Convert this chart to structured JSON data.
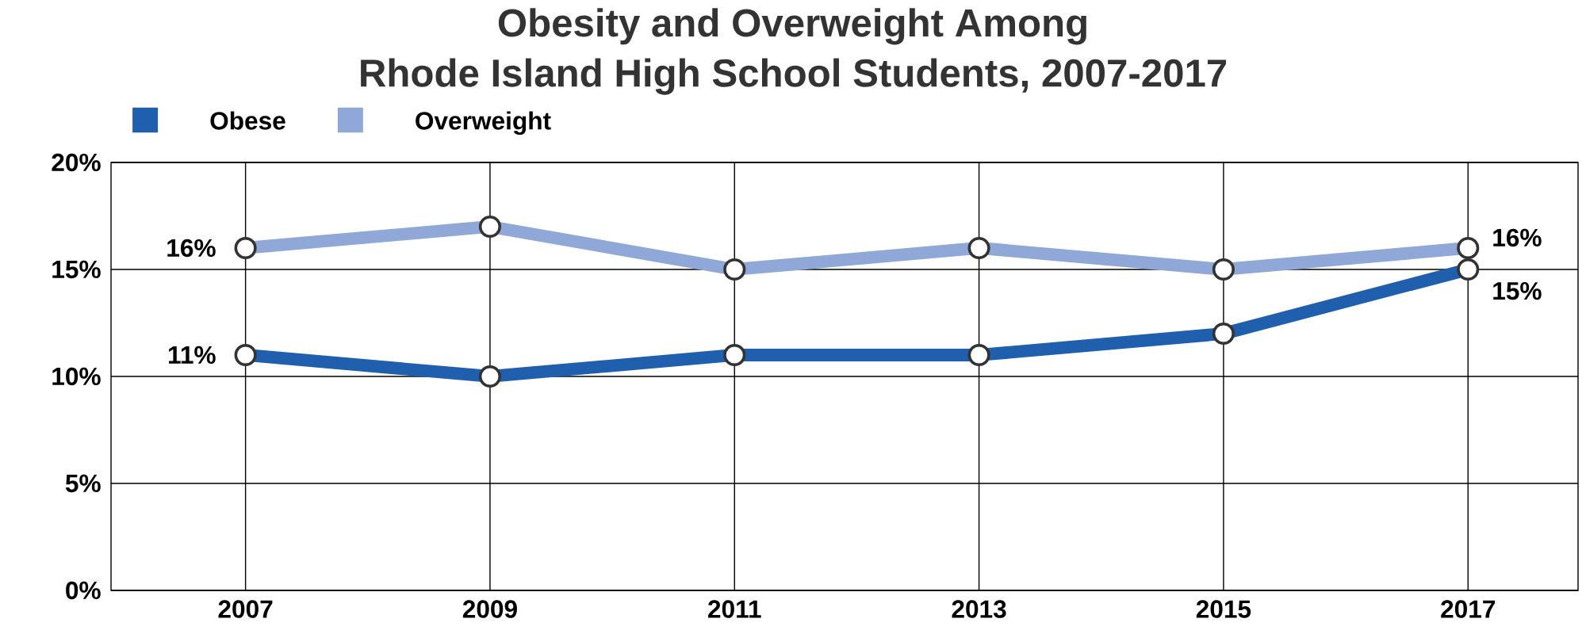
{
  "chart_data": {
    "type": "line",
    "title": "Obesity and Overweight Among\nRhode Island High School Students, 2007-2017",
    "categories": [
      "2007",
      "2009",
      "2011",
      "2013",
      "2015",
      "2017"
    ],
    "series": [
      {
        "name": "Obese",
        "color": "#1f5fae",
        "values": [
          11,
          10,
          11,
          11,
          12,
          15
        ],
        "value_labels": [
          "11%",
          null,
          null,
          null,
          null,
          "15%"
        ]
      },
      {
        "name": "Overweight",
        "color": "#8fa8d8",
        "values": [
          16,
          17,
          15,
          16,
          15,
          16
        ],
        "value_labels": [
          "16%",
          null,
          null,
          null,
          null,
          "16%"
        ]
      }
    ],
    "ylim": [
      0,
      20
    ],
    "yticks": [
      {
        "value": 0,
        "label": "0%"
      },
      {
        "value": 5,
        "label": "5%"
      },
      {
        "value": 10,
        "label": "10%"
      },
      {
        "value": 15,
        "label": "15%"
      },
      {
        "value": 20,
        "label": "20%"
      }
    ],
    "grid": true,
    "legend": "top left",
    "marker": "circle",
    "line_style": "solid"
  }
}
